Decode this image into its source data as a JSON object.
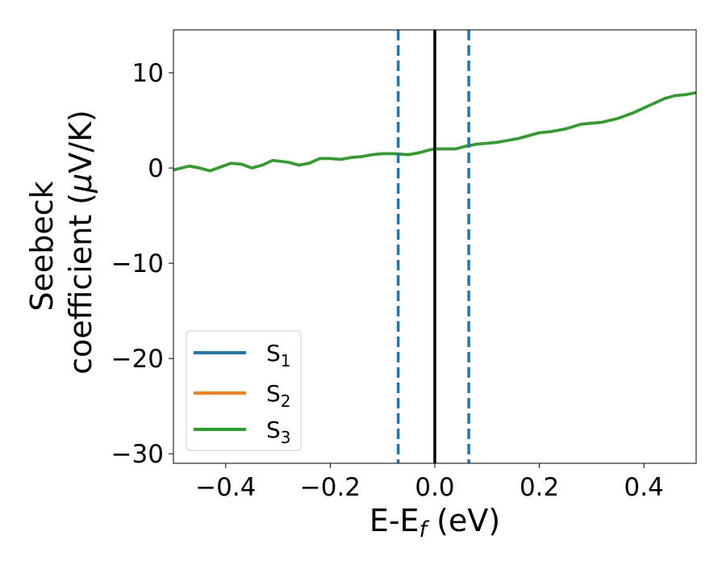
{
  "chart_data": {
    "type": "line",
    "xlabel": "E-E",
    "xlabel_sub": "f",
    "xlabel_unit": " (eV)",
    "ylabel_line1": "Seebeck",
    "ylabel_line2": "coefficient  (",
    "ylabel_mu": "μ",
    "ylabel_unit": "V/K)",
    "xlim": [
      -0.5,
      0.5
    ],
    "ylim": [
      -31,
      14.5
    ],
    "xticks": [
      -0.4,
      -0.2,
      0.0,
      0.2,
      0.4
    ],
    "xtick_labels": [
      "−0.4",
      "−0.2",
      "0.0",
      "0.2",
      "0.4"
    ],
    "yticks": [
      10,
      0,
      -10,
      -20,
      -30
    ],
    "ytick_labels": [
      "10",
      "0",
      "−10",
      "−20",
      "−30"
    ],
    "grid": false,
    "legend_position": "lower-left",
    "series": [
      {
        "name": "S",
        "sub": "1",
        "color": "#1f77b4",
        "x": [
          -0.5,
          -0.47,
          -0.45,
          -0.43,
          -0.41,
          -0.39,
          -0.37,
          -0.35,
          -0.33,
          -0.31,
          -0.28,
          -0.26,
          -0.24,
          -0.22,
          -0.2,
          -0.18,
          -0.16,
          -0.14,
          -0.12,
          -0.1,
          -0.08,
          -0.05,
          -0.03,
          -0.01,
          0.0,
          0.02,
          0.04,
          0.06,
          0.08,
          0.1,
          0.12,
          0.14,
          0.16,
          0.18,
          0.2,
          0.22,
          0.25,
          0.28,
          0.3,
          0.32,
          0.35,
          0.38,
          0.4,
          0.42,
          0.44,
          0.46,
          0.48,
          0.5
        ],
        "y": [
          -0.2,
          0.2,
          0.0,
          -0.3,
          0.1,
          0.5,
          0.4,
          0.0,
          0.3,
          0.8,
          0.6,
          0.3,
          0.5,
          1.0,
          1.0,
          0.9,
          1.1,
          1.2,
          1.4,
          1.5,
          1.5,
          1.4,
          1.6,
          1.9,
          2.0,
          2.0,
          2.0,
          2.3,
          2.5,
          2.6,
          2.7,
          2.9,
          3.1,
          3.4,
          3.7,
          3.8,
          4.1,
          4.6,
          4.7,
          4.8,
          5.2,
          5.8,
          6.3,
          6.8,
          7.3,
          7.6,
          7.7,
          7.9
        ]
      },
      {
        "name": "S",
        "sub": "2",
        "color": "#ff7f0e",
        "x": [
          -0.5,
          -0.47,
          -0.45,
          -0.43,
          -0.41,
          -0.39,
          -0.37,
          -0.35,
          -0.33,
          -0.31,
          -0.28,
          -0.26,
          -0.24,
          -0.22,
          -0.2,
          -0.18,
          -0.16,
          -0.14,
          -0.12,
          -0.1,
          -0.08,
          -0.05,
          -0.03,
          -0.01,
          0.0,
          0.02,
          0.04,
          0.06,
          0.08,
          0.1,
          0.12,
          0.14,
          0.16,
          0.18,
          0.2,
          0.22,
          0.25,
          0.28,
          0.3,
          0.32,
          0.35,
          0.38,
          0.4,
          0.42,
          0.44,
          0.46,
          0.48,
          0.5
        ],
        "y": [
          -0.2,
          0.2,
          0.0,
          -0.3,
          0.1,
          0.5,
          0.4,
          0.0,
          0.3,
          0.8,
          0.6,
          0.3,
          0.5,
          1.0,
          1.0,
          0.9,
          1.1,
          1.2,
          1.4,
          1.5,
          1.5,
          1.4,
          1.6,
          1.9,
          2.0,
          2.0,
          2.0,
          2.3,
          2.5,
          2.6,
          2.7,
          2.9,
          3.1,
          3.4,
          3.7,
          3.8,
          4.1,
          4.6,
          4.7,
          4.8,
          5.2,
          5.8,
          6.3,
          6.8,
          7.3,
          7.6,
          7.7,
          7.9
        ]
      },
      {
        "name": "S",
        "sub": "3",
        "color": "#2ca02c",
        "x": [
          -0.5,
          -0.47,
          -0.45,
          -0.43,
          -0.41,
          -0.39,
          -0.37,
          -0.35,
          -0.33,
          -0.31,
          -0.28,
          -0.26,
          -0.24,
          -0.22,
          -0.2,
          -0.18,
          -0.16,
          -0.14,
          -0.12,
          -0.1,
          -0.08,
          -0.05,
          -0.03,
          -0.01,
          0.0,
          0.02,
          0.04,
          0.06,
          0.08,
          0.1,
          0.12,
          0.14,
          0.16,
          0.18,
          0.2,
          0.22,
          0.25,
          0.28,
          0.3,
          0.32,
          0.35,
          0.38,
          0.4,
          0.42,
          0.44,
          0.46,
          0.48,
          0.5
        ],
        "y": [
          -0.2,
          0.2,
          0.0,
          -0.3,
          0.1,
          0.5,
          0.4,
          0.0,
          0.3,
          0.8,
          0.6,
          0.3,
          0.5,
          1.0,
          1.0,
          0.9,
          1.1,
          1.2,
          1.4,
          1.5,
          1.5,
          1.4,
          1.6,
          1.9,
          2.0,
          2.0,
          2.0,
          2.3,
          2.5,
          2.6,
          2.7,
          2.9,
          3.1,
          3.4,
          3.7,
          3.8,
          4.1,
          4.6,
          4.7,
          4.8,
          5.2,
          5.8,
          6.3,
          6.8,
          7.3,
          7.6,
          7.7,
          7.9
        ]
      }
    ],
    "vlines": [
      {
        "x": -0.07,
        "style": "dashed",
        "color": "#1f77b4"
      },
      {
        "x": 0.0,
        "style": "solid",
        "color": "#000000"
      },
      {
        "x": 0.065,
        "style": "dashed",
        "color": "#1f77b4"
      }
    ]
  }
}
